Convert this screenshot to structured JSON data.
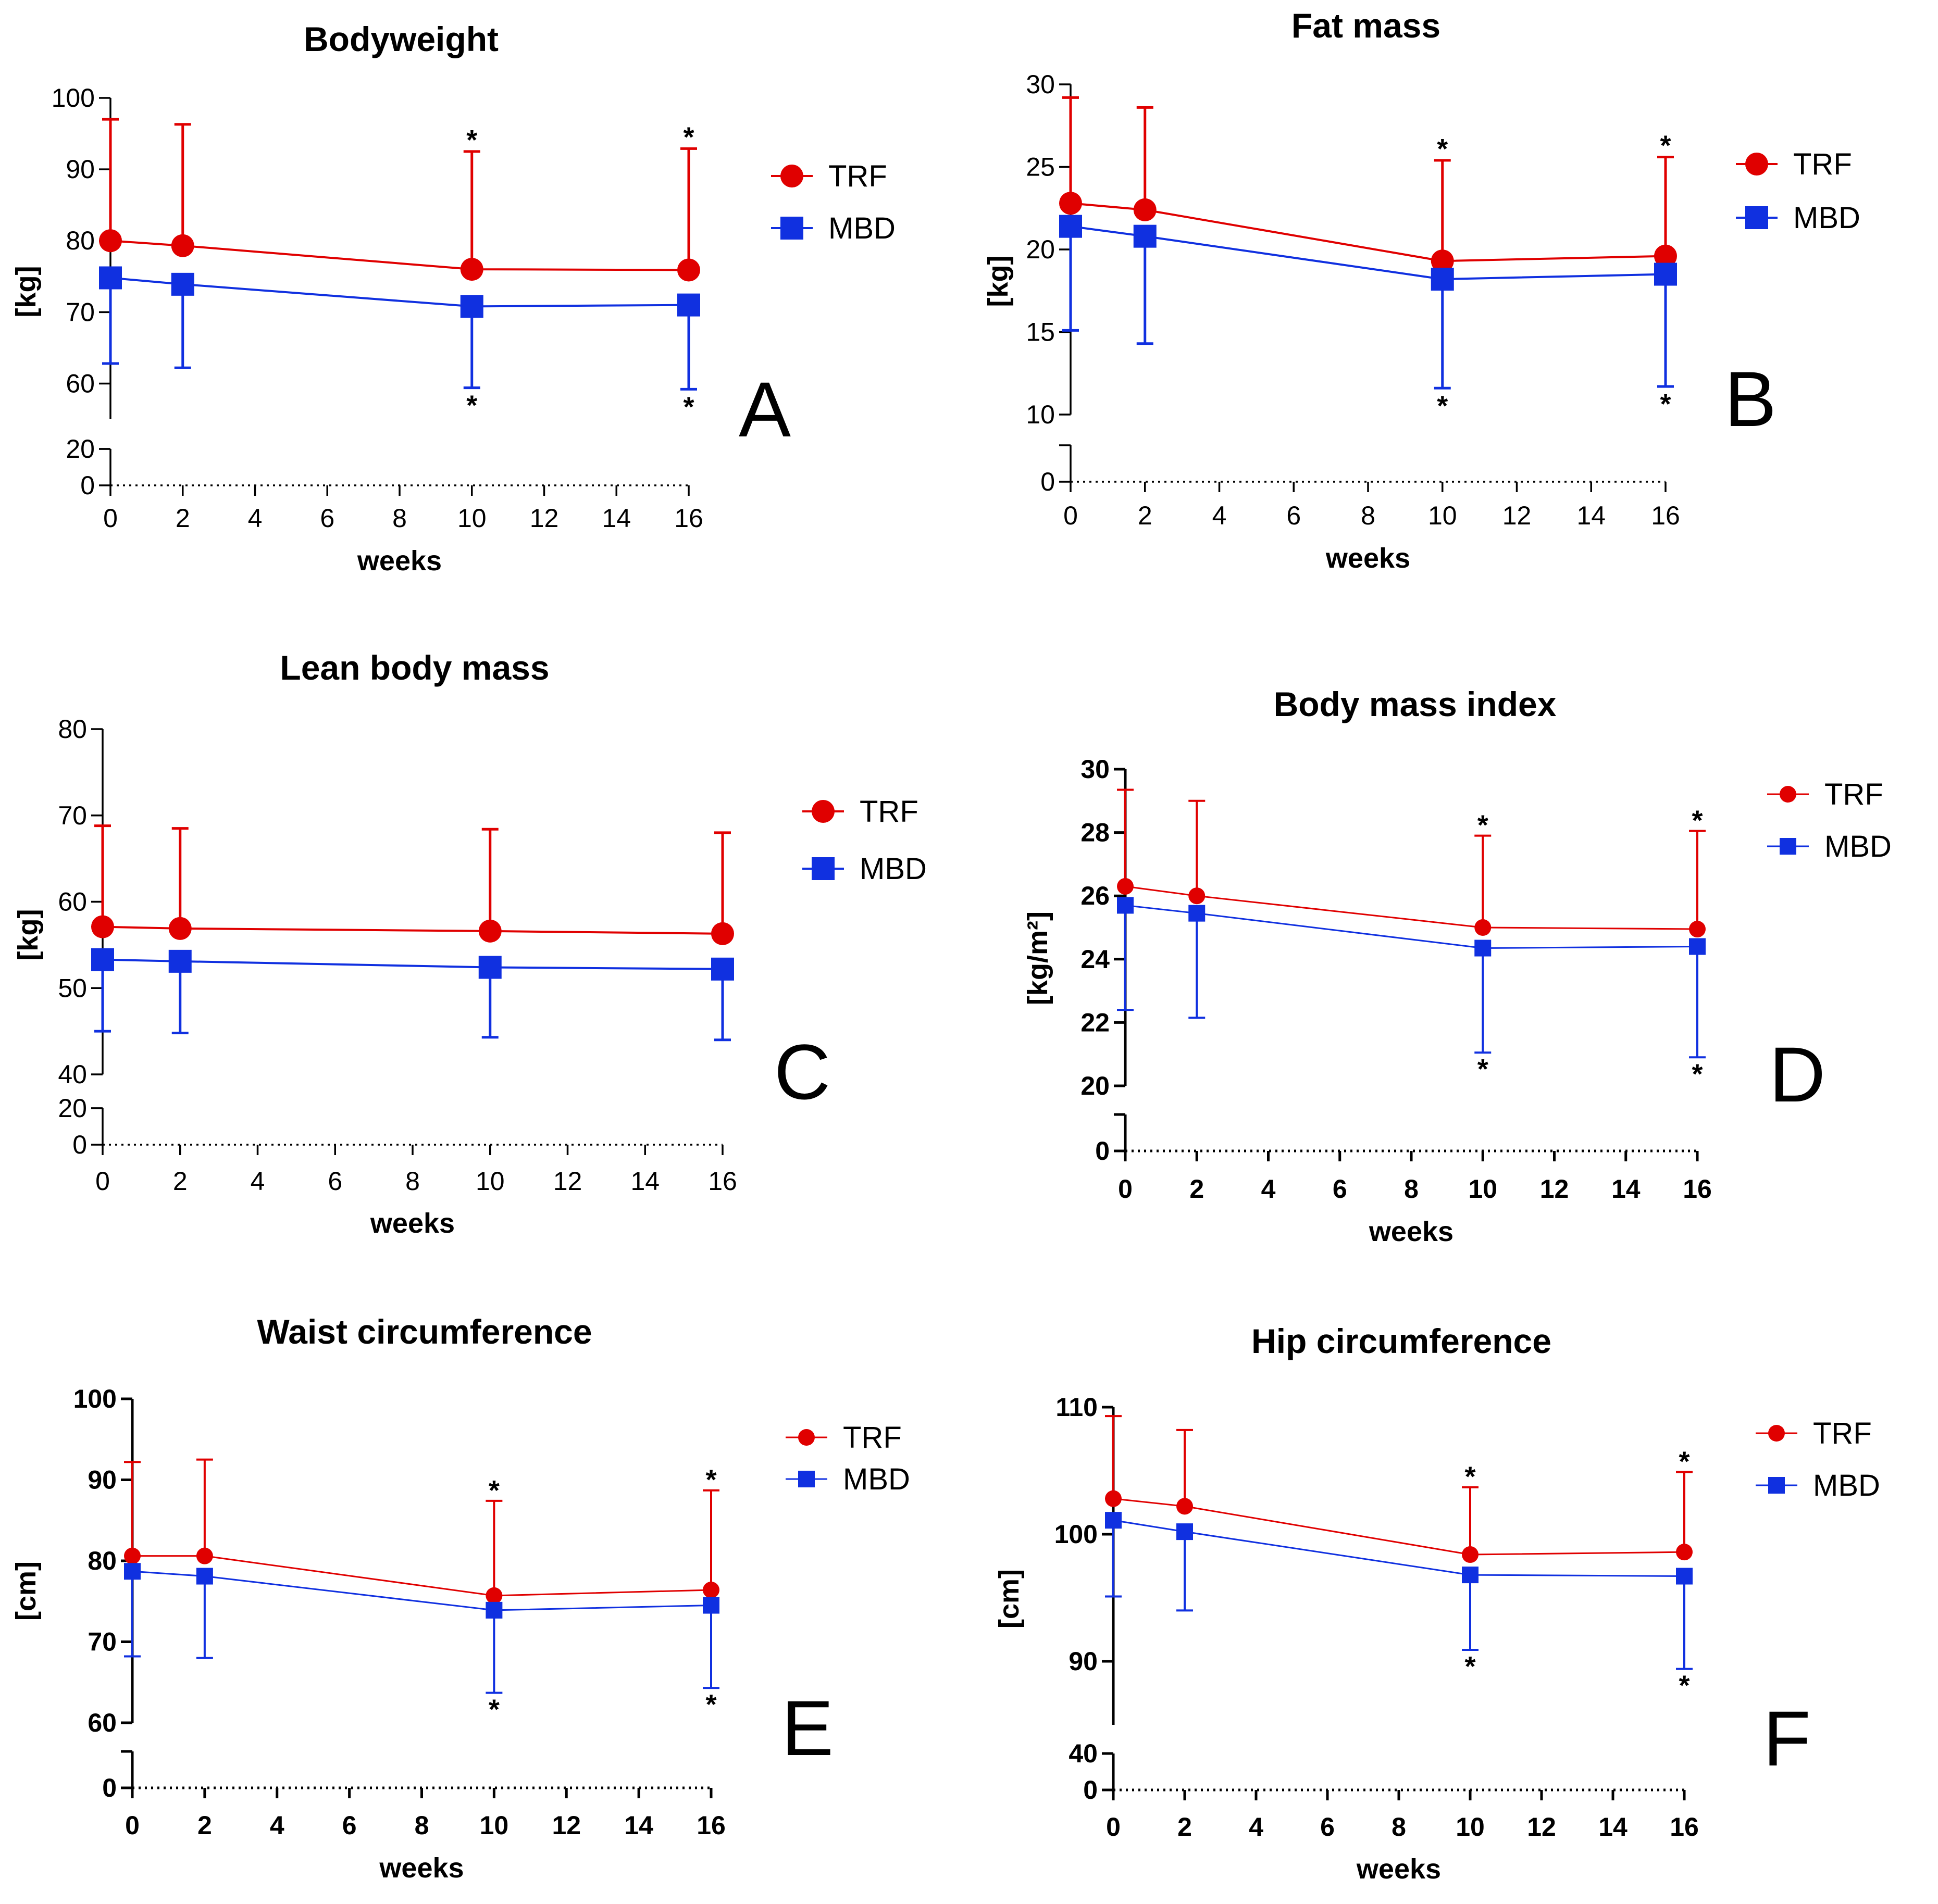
{
  "colors": {
    "trf": "#e00000",
    "mbd": "#1030e0",
    "axis": "#000000"
  },
  "chart_data": [
    {
      "type": "line",
      "panel_letter": "A",
      "title": "Bodyweight",
      "xlabel": "weeks",
      "ylabel": "[kg]",
      "xlim": [
        0,
        16
      ],
      "x_ticks": [
        "0",
        "2",
        "4",
        "6",
        "8",
        "10",
        "12",
        "14",
        "16"
      ],
      "ylim_upper": [
        55,
        100
      ],
      "y_ticks_upper": [
        "60",
        "70",
        "80",
        "90",
        "100"
      ],
      "ylim_lower": [
        0,
        20
      ],
      "y_ticks_lower": [
        "0",
        "20"
      ],
      "x": [
        0,
        2,
        10,
        16
      ],
      "series": [
        {
          "name": "TRF",
          "values": [
            80,
            79.3,
            76,
            75.9
          ],
          "err_up": [
            17,
            17,
            16.5,
            17
          ],
          "err_down": [
            0,
            0,
            0,
            0
          ],
          "marker": "circle",
          "stars_above": [
            false,
            false,
            true,
            true
          ]
        },
        {
          "name": "MBD",
          "values": [
            74.8,
            73.9,
            70.8,
            71
          ],
          "err_up": [
            0,
            0,
            0,
            0
          ],
          "err_down": [
            12,
            11.7,
            11.4,
            11.8
          ],
          "marker": "square",
          "stars_below": [
            false,
            false,
            true,
            true
          ]
        }
      ],
      "annotations": [
        "*",
        "*",
        "*",
        "*"
      ],
      "legend": "right"
    },
    {
      "type": "line",
      "panel_letter": "B",
      "title": "Fat mass",
      "xlabel": "weeks",
      "ylabel": "[kg]",
      "xlim": [
        0,
        16
      ],
      "x_ticks": [
        "0",
        "2",
        "4",
        "6",
        "8",
        "10",
        "12",
        "14",
        "16"
      ],
      "ylim_upper": [
        10,
        30
      ],
      "y_ticks_upper": [
        "10",
        "15",
        "20",
        "25",
        "30"
      ],
      "ylim_lower": [
        0,
        5
      ],
      "y_ticks_lower": [
        "0"
      ],
      "x": [
        0,
        2,
        10,
        16
      ],
      "series": [
        {
          "name": "TRF",
          "values": [
            22.8,
            22.4,
            19.3,
            19.6
          ],
          "err_up": [
            6.4,
            6.2,
            6.1,
            6.0
          ],
          "err_down": [
            0,
            0,
            0,
            0
          ],
          "marker": "circle",
          "stars_above": [
            false,
            false,
            true,
            true
          ]
        },
        {
          "name": "MBD",
          "values": [
            21.4,
            20.8,
            18.2,
            18.5
          ],
          "err_up": [
            0,
            0,
            0,
            0
          ],
          "err_down": [
            6.3,
            6.5,
            6.6,
            6.8
          ],
          "marker": "square",
          "stars_below": [
            false,
            false,
            true,
            true
          ]
        }
      ],
      "annotations": [
        "*",
        "*",
        "*",
        "*"
      ],
      "legend": "right"
    },
    {
      "type": "line",
      "panel_letter": "C",
      "title": "Lean body mass",
      "xlabel": "weeks",
      "ylabel": "[kg]",
      "xlim": [
        0,
        16
      ],
      "x_ticks": [
        "0",
        "2",
        "4",
        "6",
        "8",
        "10",
        "12",
        "14",
        "16"
      ],
      "ylim_upper": [
        40,
        80
      ],
      "y_ticks_upper": [
        "40",
        "50",
        "60",
        "70",
        "80"
      ],
      "ylim_lower": [
        0,
        20
      ],
      "y_ticks_lower": [
        "0",
        "20"
      ],
      "x": [
        0,
        2,
        10,
        16
      ],
      "series": [
        {
          "name": "TRF",
          "values": [
            57.1,
            56.9,
            56.6,
            56.3
          ],
          "err_up": [
            11.7,
            11.6,
            11.8,
            11.7
          ],
          "err_down": [
            0,
            0,
            0,
            0
          ],
          "marker": "circle",
          "stars_above": [
            false,
            false,
            false,
            false
          ]
        },
        {
          "name": "MBD",
          "values": [
            53.3,
            53.1,
            52.4,
            52.2
          ],
          "err_up": [
            0,
            0,
            0,
            0
          ],
          "err_down": [
            8.3,
            8.3,
            8.1,
            8.2
          ],
          "marker": "square",
          "stars_below": [
            false,
            false,
            false,
            false
          ]
        }
      ],
      "annotations": [],
      "legend": "right"
    },
    {
      "type": "line",
      "panel_letter": "D",
      "title": "Body mass index",
      "xlabel": "weeks",
      "ylabel": "[kg/m²]",
      "xlim": [
        0,
        16
      ],
      "x_ticks": [
        "0",
        "2",
        "4",
        "6",
        "8",
        "10",
        "12",
        "14",
        "16"
      ],
      "ylim_upper": [
        20,
        30
      ],
      "y_ticks_upper": [
        "20",
        "22",
        "24",
        "26",
        "28",
        "30"
      ],
      "ylim_lower": [
        0,
        1
      ],
      "y_ticks_lower": [
        "0"
      ],
      "x": [
        0,
        2,
        10,
        16
      ],
      "series": [
        {
          "name": "TRF",
          "values": [
            26.3,
            26.0,
            25.0,
            24.95
          ],
          "err_up": [
            3.05,
            3.0,
            2.9,
            3.1
          ],
          "err_down": [
            0,
            0,
            0,
            0
          ],
          "marker": "circle",
          "stars_above": [
            false,
            false,
            true,
            true
          ]
        },
        {
          "name": "MBD",
          "values": [
            25.7,
            25.45,
            24.35,
            24.4
          ],
          "err_up": [
            0,
            0,
            0,
            0
          ],
          "err_down": [
            3.3,
            3.3,
            3.3,
            3.5
          ],
          "marker": "square",
          "stars_below": [
            false,
            false,
            true,
            true
          ]
        }
      ],
      "annotations": [
        "*",
        "*",
        "*",
        "*"
      ],
      "legend": "right"
    },
    {
      "type": "line",
      "panel_letter": "E",
      "title": "Waist circumference",
      "xlabel": "weeks",
      "ylabel": "[cm]",
      "xlim": [
        0,
        16
      ],
      "x_ticks": [
        "0",
        "2",
        "4",
        "6",
        "8",
        "10",
        "12",
        "14",
        "16"
      ],
      "ylim_upper": [
        60,
        100
      ],
      "y_ticks_upper": [
        "60",
        "70",
        "80",
        "90",
        "100"
      ],
      "ylim_lower": [
        0,
        5
      ],
      "y_ticks_lower": [
        "0"
      ],
      "x": [
        0,
        2,
        10,
        16
      ],
      "series": [
        {
          "name": "TRF",
          "values": [
            80.6,
            80.6,
            75.7,
            76.4
          ],
          "err_up": [
            11.6,
            11.9,
            11.7,
            12.3
          ],
          "err_down": [
            0,
            0,
            0,
            0
          ],
          "marker": "circle",
          "stars_above": [
            false,
            false,
            true,
            true
          ]
        },
        {
          "name": "MBD",
          "values": [
            78.7,
            78.1,
            73.9,
            74.5
          ],
          "err_up": [
            0,
            0,
            0,
            0
          ],
          "err_down": [
            10.5,
            10.1,
            10.2,
            10.2
          ],
          "marker": "square",
          "stars_below": [
            false,
            false,
            true,
            true
          ]
        }
      ],
      "annotations": [
        "*",
        "*",
        "*",
        "*"
      ],
      "legend": "right"
    },
    {
      "type": "line",
      "panel_letter": "F",
      "title": "Hip circumference",
      "xlabel": "weeks",
      "ylabel": "[cm]",
      "xlim": [
        0,
        16
      ],
      "x_ticks": [
        "0",
        "2",
        "4",
        "6",
        "8",
        "10",
        "12",
        "14",
        "16"
      ],
      "ylim_upper": [
        85,
        110
      ],
      "y_ticks_upper": [
        "90",
        "100",
        "110"
      ],
      "ylim_lower": [
        0,
        40
      ],
      "y_ticks_lower": [
        "0",
        "40"
      ],
      "x": [
        0,
        2,
        10,
        16
      ],
      "series": [
        {
          "name": "TRF",
          "values": [
            102.8,
            102.2,
            98.4,
            98.6
          ],
          "err_up": [
            6.5,
            6.0,
            5.3,
            6.3
          ],
          "err_down": [
            0,
            0,
            0,
            0
          ],
          "marker": "circle",
          "stars_above": [
            false,
            false,
            true,
            true
          ]
        },
        {
          "name": "MBD",
          "values": [
            101.1,
            100.2,
            96.8,
            96.7
          ],
          "err_up": [
            0,
            0,
            0,
            0
          ],
          "err_down": [
            6.0,
            6.2,
            5.9,
            7.3
          ],
          "marker": "square",
          "stars_below": [
            false,
            false,
            true,
            true
          ]
        }
      ],
      "annotations": [
        "*",
        "*",
        "*",
        "*"
      ],
      "legend": "right"
    }
  ]
}
